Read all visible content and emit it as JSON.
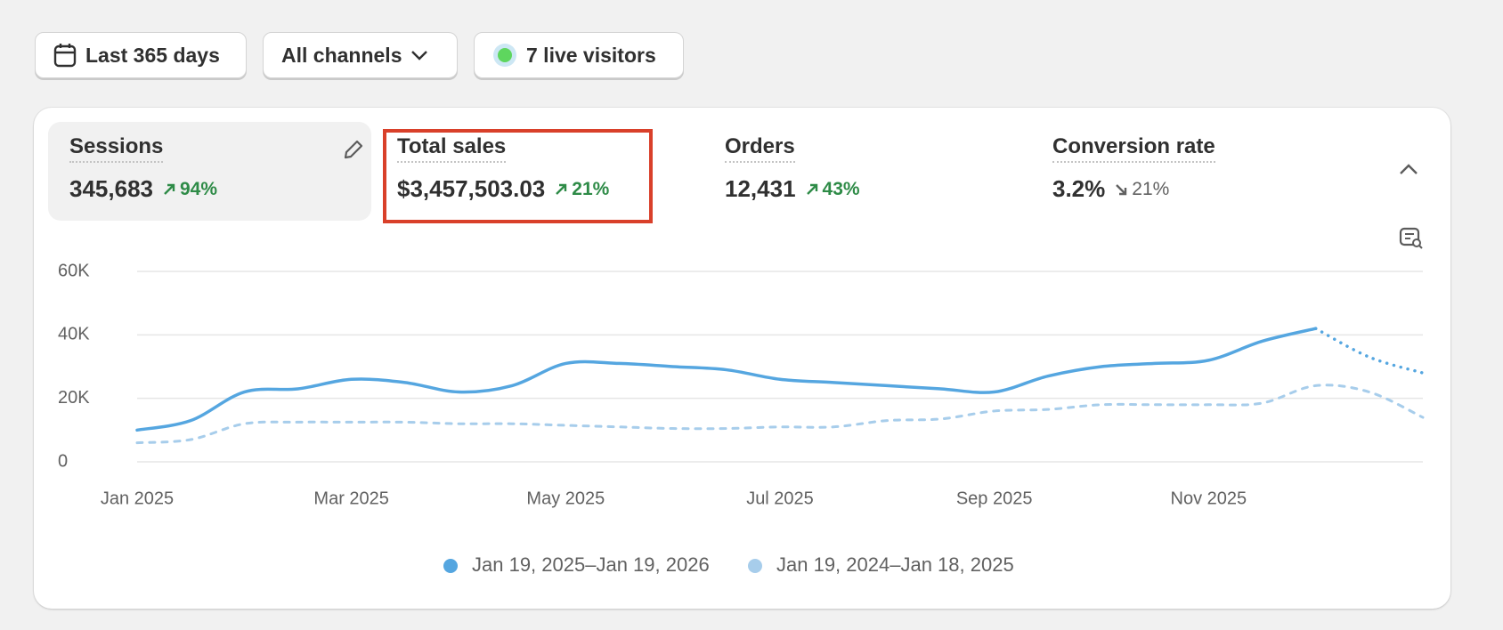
{
  "filters": {
    "date_range": "Last 365 days",
    "channel": "All channels",
    "live_visitors": "7 live visitors"
  },
  "metrics": [
    {
      "label": "Sessions",
      "value": "345,683",
      "change": "94%",
      "direction": "up"
    },
    {
      "label": "Total sales",
      "value": "$3,457,503.03",
      "change": "21%",
      "direction": "up"
    },
    {
      "label": "Orders",
      "value": "12,431",
      "change": "43%",
      "direction": "up"
    },
    {
      "label": "Conversion rate",
      "value": "3.2%",
      "change": "21%",
      "direction": "down"
    }
  ],
  "chart_data": {
    "type": "line",
    "categories": [
      "Jan 2025",
      null,
      null,
      null,
      "Mar 2025",
      null,
      null,
      null,
      "May 2025",
      null,
      null,
      null,
      "Jul 2025",
      null,
      null,
      null,
      "Sep 2025",
      null,
      null,
      null,
      "Nov 2025",
      null,
      null,
      null,
      null
    ],
    "series": [
      {
        "name": "Jan 19, 2025–Jan 19, 2026",
        "color": "#55a6e0",
        "dotted_after": 22,
        "values": [
          10000,
          13000,
          22000,
          23000,
          26000,
          25000,
          22000,
          24000,
          31000,
          31000,
          30000,
          29000,
          26000,
          25000,
          24000,
          23000,
          22000,
          27000,
          30000,
          31000,
          32000,
          38000,
          42000,
          33000,
          28000
        ]
      },
      {
        "name": "Jan 19, 2024–Jan 18, 2025",
        "color": "#a7cdeb",
        "values": [
          6000,
          7000,
          12000,
          12500,
          12500,
          12500,
          12000,
          12000,
          11500,
          11000,
          10500,
          10500,
          11000,
          11000,
          13000,
          13500,
          16000,
          16500,
          18000,
          18000,
          18000,
          18500,
          24000,
          22000,
          14000
        ]
      }
    ],
    "ylim": [
      0,
      60000
    ],
    "yticks": [
      0,
      {
        "value": 20000,
        "label": "20K"
      },
      {
        "value": 40000,
        "label": "40K"
      },
      {
        "value": 60000,
        "label": "60K"
      }
    ],
    "grid": true
  }
}
